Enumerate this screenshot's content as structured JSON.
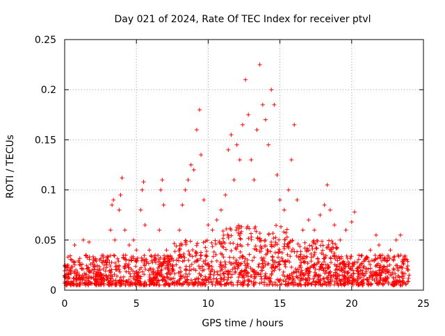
{
  "chart_data": {
    "type": "scatter",
    "title": "Day 021 of 2024, Rate Of TEC Index for receiver ptvl",
    "xlabel": "GPS time / hours",
    "ylabel": "ROTI / TECUs",
    "xlim": [
      0,
      25
    ],
    "ylim": [
      0,
      0.25
    ],
    "xticks": [
      0,
      5,
      10,
      15,
      20,
      25
    ],
    "yticks": [
      0,
      0.05,
      0.1,
      0.15,
      0.2,
      0.25
    ],
    "xtick_labels": [
      "0",
      "5",
      "10",
      "15",
      "20",
      "25"
    ],
    "ytick_labels": [
      "0",
      "0.05",
      "0.1",
      "0.15",
      "0.2",
      "0.25"
    ],
    "grid": true,
    "marker": "+",
    "color": "#ff0000",
    "x_data_range": [
      0,
      24
    ],
    "points": [
      [
        0.1,
        0.012
      ],
      [
        0.3,
        0.02
      ],
      [
        0.5,
        0.03
      ],
      [
        0.7,
        0.045
      ],
      [
        0.9,
        0.018
      ],
      [
        1.1,
        0.025
      ],
      [
        1.3,
        0.05
      ],
      [
        1.5,
        0.035
      ],
      [
        1.7,
        0.048
      ],
      [
        1.9,
        0.02
      ],
      [
        2.3,
        0.015
      ],
      [
        2.7,
        0.012
      ],
      [
        3.0,
        0.03
      ],
      [
        3.2,
        0.06
      ],
      [
        3.3,
        0.085
      ],
      [
        3.4,
        0.09
      ],
      [
        3.5,
        0.05
      ],
      [
        3.8,
        0.08
      ],
      [
        3.9,
        0.095
      ],
      [
        4.0,
        0.112
      ],
      [
        4.2,
        0.06
      ],
      [
        4.5,
        0.045
      ],
      [
        4.8,
        0.05
      ],
      [
        5.0,
        0.04
      ],
      [
        5.3,
        0.08
      ],
      [
        5.4,
        0.1
      ],
      [
        5.5,
        0.108
      ],
      [
        5.6,
        0.065
      ],
      [
        5.9,
        0.04
      ],
      [
        6.3,
        0.035
      ],
      [
        6.6,
        0.06
      ],
      [
        6.7,
        0.1
      ],
      [
        6.8,
        0.11
      ],
      [
        6.9,
        0.085
      ],
      [
        7.1,
        0.04
      ],
      [
        7.5,
        0.025
      ],
      [
        7.8,
        0.03
      ],
      [
        8.0,
        0.06
      ],
      [
        8.2,
        0.085
      ],
      [
        8.4,
        0.1
      ],
      [
        8.6,
        0.11
      ],
      [
        8.8,
        0.125
      ],
      [
        9.0,
        0.12
      ],
      [
        9.2,
        0.16
      ],
      [
        9.4,
        0.18
      ],
      [
        9.5,
        0.135
      ],
      [
        9.7,
        0.09
      ],
      [
        10.0,
        0.065
      ],
      [
        10.3,
        0.06
      ],
      [
        10.6,
        0.07
      ],
      [
        10.9,
        0.08
      ],
      [
        11.2,
        0.095
      ],
      [
        11.4,
        0.14
      ],
      [
        11.6,
        0.155
      ],
      [
        11.8,
        0.11
      ],
      [
        12.0,
        0.145
      ],
      [
        12.2,
        0.13
      ],
      [
        12.4,
        0.165
      ],
      [
        12.6,
        0.21
      ],
      [
        12.8,
        0.175
      ],
      [
        13.0,
        0.13
      ],
      [
        13.2,
        0.11
      ],
      [
        13.4,
        0.16
      ],
      [
        13.6,
        0.225
      ],
      [
        13.8,
        0.185
      ],
      [
        14.0,
        0.17
      ],
      [
        14.2,
        0.145
      ],
      [
        14.4,
        0.2
      ],
      [
        14.6,
        0.185
      ],
      [
        14.8,
        0.115
      ],
      [
        15.0,
        0.09
      ],
      [
        15.3,
        0.08
      ],
      [
        15.6,
        0.1
      ],
      [
        15.8,
        0.13
      ],
      [
        16.0,
        0.165
      ],
      [
        16.2,
        0.09
      ],
      [
        16.6,
        0.06
      ],
      [
        17.0,
        0.07
      ],
      [
        17.4,
        0.06
      ],
      [
        17.8,
        0.075
      ],
      [
        18.1,
        0.085
      ],
      [
        18.3,
        0.105
      ],
      [
        18.5,
        0.08
      ],
      [
        18.8,
        0.065
      ],
      [
        19.2,
        0.05
      ],
      [
        19.6,
        0.06
      ],
      [
        20.0,
        0.068
      ],
      [
        20.2,
        0.078
      ],
      [
        20.5,
        0.035
      ],
      [
        20.9,
        0.03
      ],
      [
        21.3,
        0.04
      ],
      [
        21.7,
        0.055
      ],
      [
        21.9,
        0.045
      ],
      [
        22.3,
        0.03
      ],
      [
        22.7,
        0.04
      ],
      [
        23.1,
        0.05
      ],
      [
        23.4,
        0.055
      ],
      [
        23.7,
        0.03
      ],
      [
        23.9,
        0.02
      ],
      [
        24.0,
        0.015
      ]
    ]
  }
}
